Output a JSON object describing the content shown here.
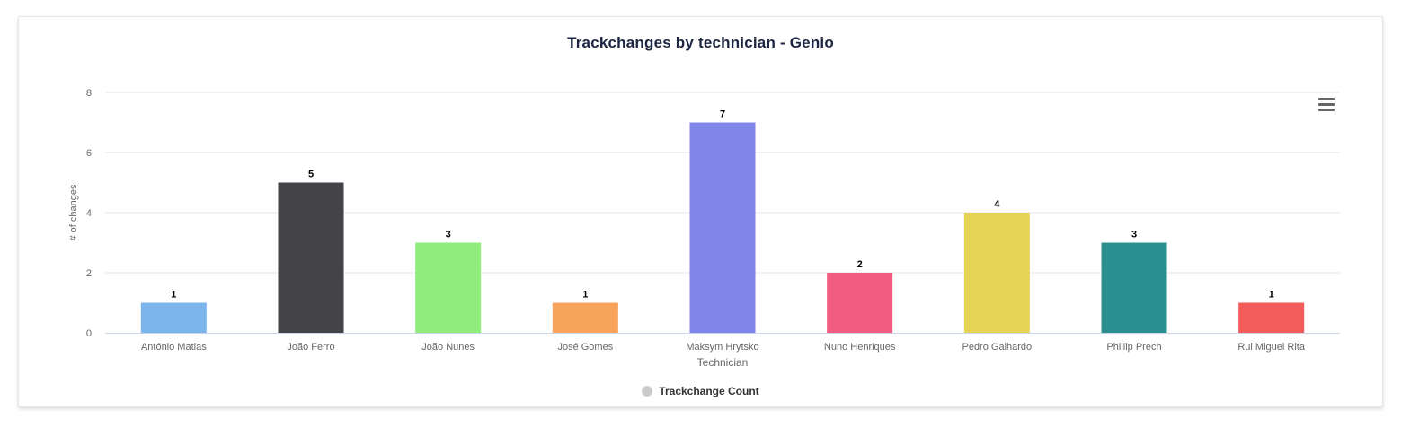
{
  "chart_data": {
    "type": "bar",
    "title": "Trackchanges by technician - Genio",
    "xlabel": "Technician",
    "ylabel": "# of changes",
    "ylim": [
      0,
      8
    ],
    "yticks": [
      0,
      2,
      4,
      6,
      8
    ],
    "grid": true,
    "legend_position": "bottom-center",
    "categories": [
      "António Matias",
      "João Ferro",
      "João Nunes",
      "José Gomes",
      "Maksym Hrytsko",
      "Nuno Henriques",
      "Pedro Galhardo",
      "Phillip Prech",
      "Rui Miguel Rita"
    ],
    "series": [
      {
        "name": "Trackchange Count",
        "values": [
          1,
          5,
          3,
          1,
          7,
          2,
          4,
          3,
          1
        ],
        "colors": [
          "#7cb5ec",
          "#434348",
          "#90ed7d",
          "#f7a35c",
          "#8085e9",
          "#f15c80",
          "#e4d354",
          "#2b908f",
          "#f45b5b"
        ]
      }
    ]
  },
  "legend": {
    "label": "Trackchange Count",
    "color": "#cccccc"
  },
  "menu": {
    "icon": "hamburger-menu-icon"
  }
}
